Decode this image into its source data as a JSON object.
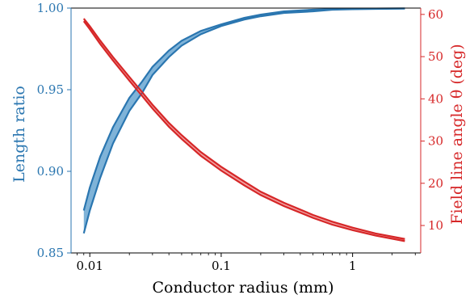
{
  "chart_data": {
    "type": "line",
    "title": "",
    "xlabel": "Conductor radius (mm)",
    "xscale": "log",
    "xlim": [
      0.0072,
      3.3
    ],
    "xticks": [
      {
        "value": 0.01,
        "label": "0.01"
      },
      {
        "value": 0.1,
        "label": "0.1"
      },
      {
        "value": 1,
        "label": "1"
      }
    ],
    "y_left": {
      "label": "Length ratio",
      "color": "#2a76b0",
      "ylim": [
        0.85,
        1.0
      ],
      "ticks": [
        {
          "value": 0.85,
          "label": "0.85"
        },
        {
          "value": 0.9,
          "label": "0.90"
        },
        {
          "value": 0.95,
          "label": "0.95"
        },
        {
          "value": 1.0,
          "label": "1.00"
        }
      ]
    },
    "y_right": {
      "label": "Field line angle θ (deg)",
      "color": "#d62728",
      "ylim": [
        3.5,
        61.5
      ],
      "ticks": [
        {
          "value": 10,
          "label": "10"
        },
        {
          "value": 20,
          "label": "20"
        },
        {
          "value": 30,
          "label": "30"
        },
        {
          "value": 40,
          "label": "40"
        },
        {
          "value": 50,
          "label": "50"
        },
        {
          "value": 60,
          "label": "60"
        }
      ]
    },
    "x": [
      0.009,
      0.01,
      0.012,
      0.015,
      0.02,
      0.025,
      0.03,
      0.04,
      0.05,
      0.07,
      0.1,
      0.15,
      0.2,
      0.3,
      0.5,
      0.7,
      1.0,
      1.5,
      2.5
    ],
    "series": [
      {
        "axis": "left",
        "color": "#2a76b0",
        "band_fill": "#7fb3d8",
        "upper": [
          0.876,
          0.89,
          0.909,
          0.927,
          0.945,
          0.955,
          0.964,
          0.974,
          0.98,
          0.986,
          0.99,
          0.994,
          0.996,
          0.998,
          0.999,
          0.9993,
          0.9995,
          0.9997,
          0.9998
        ],
        "lower": [
          0.862,
          0.876,
          0.896,
          0.917,
          0.937,
          0.948,
          0.959,
          0.97,
          0.977,
          0.984,
          0.989,
          0.993,
          0.995,
          0.997,
          0.998,
          0.999,
          0.9993,
          0.9995,
          0.9997
        ]
      },
      {
        "axis": "right",
        "color": "#d62728",
        "band_fill": "#f2a3a3",
        "upper": [
          59.0,
          57.2,
          53.8,
          49.9,
          45.2,
          41.6,
          38.6,
          34.3,
          31.4,
          27.4,
          23.9,
          20.4,
          18.0,
          15.4,
          12.5,
          10.9,
          9.5,
          8.1,
          6.8
        ],
        "lower": [
          58.4,
          56.5,
          53.0,
          49.1,
          44.3,
          40.7,
          37.7,
          33.4,
          30.5,
          26.5,
          23.0,
          19.5,
          17.2,
          14.6,
          11.8,
          10.2,
          8.9,
          7.6,
          6.3
        ]
      }
    ],
    "grid": false,
    "legend": "none"
  }
}
